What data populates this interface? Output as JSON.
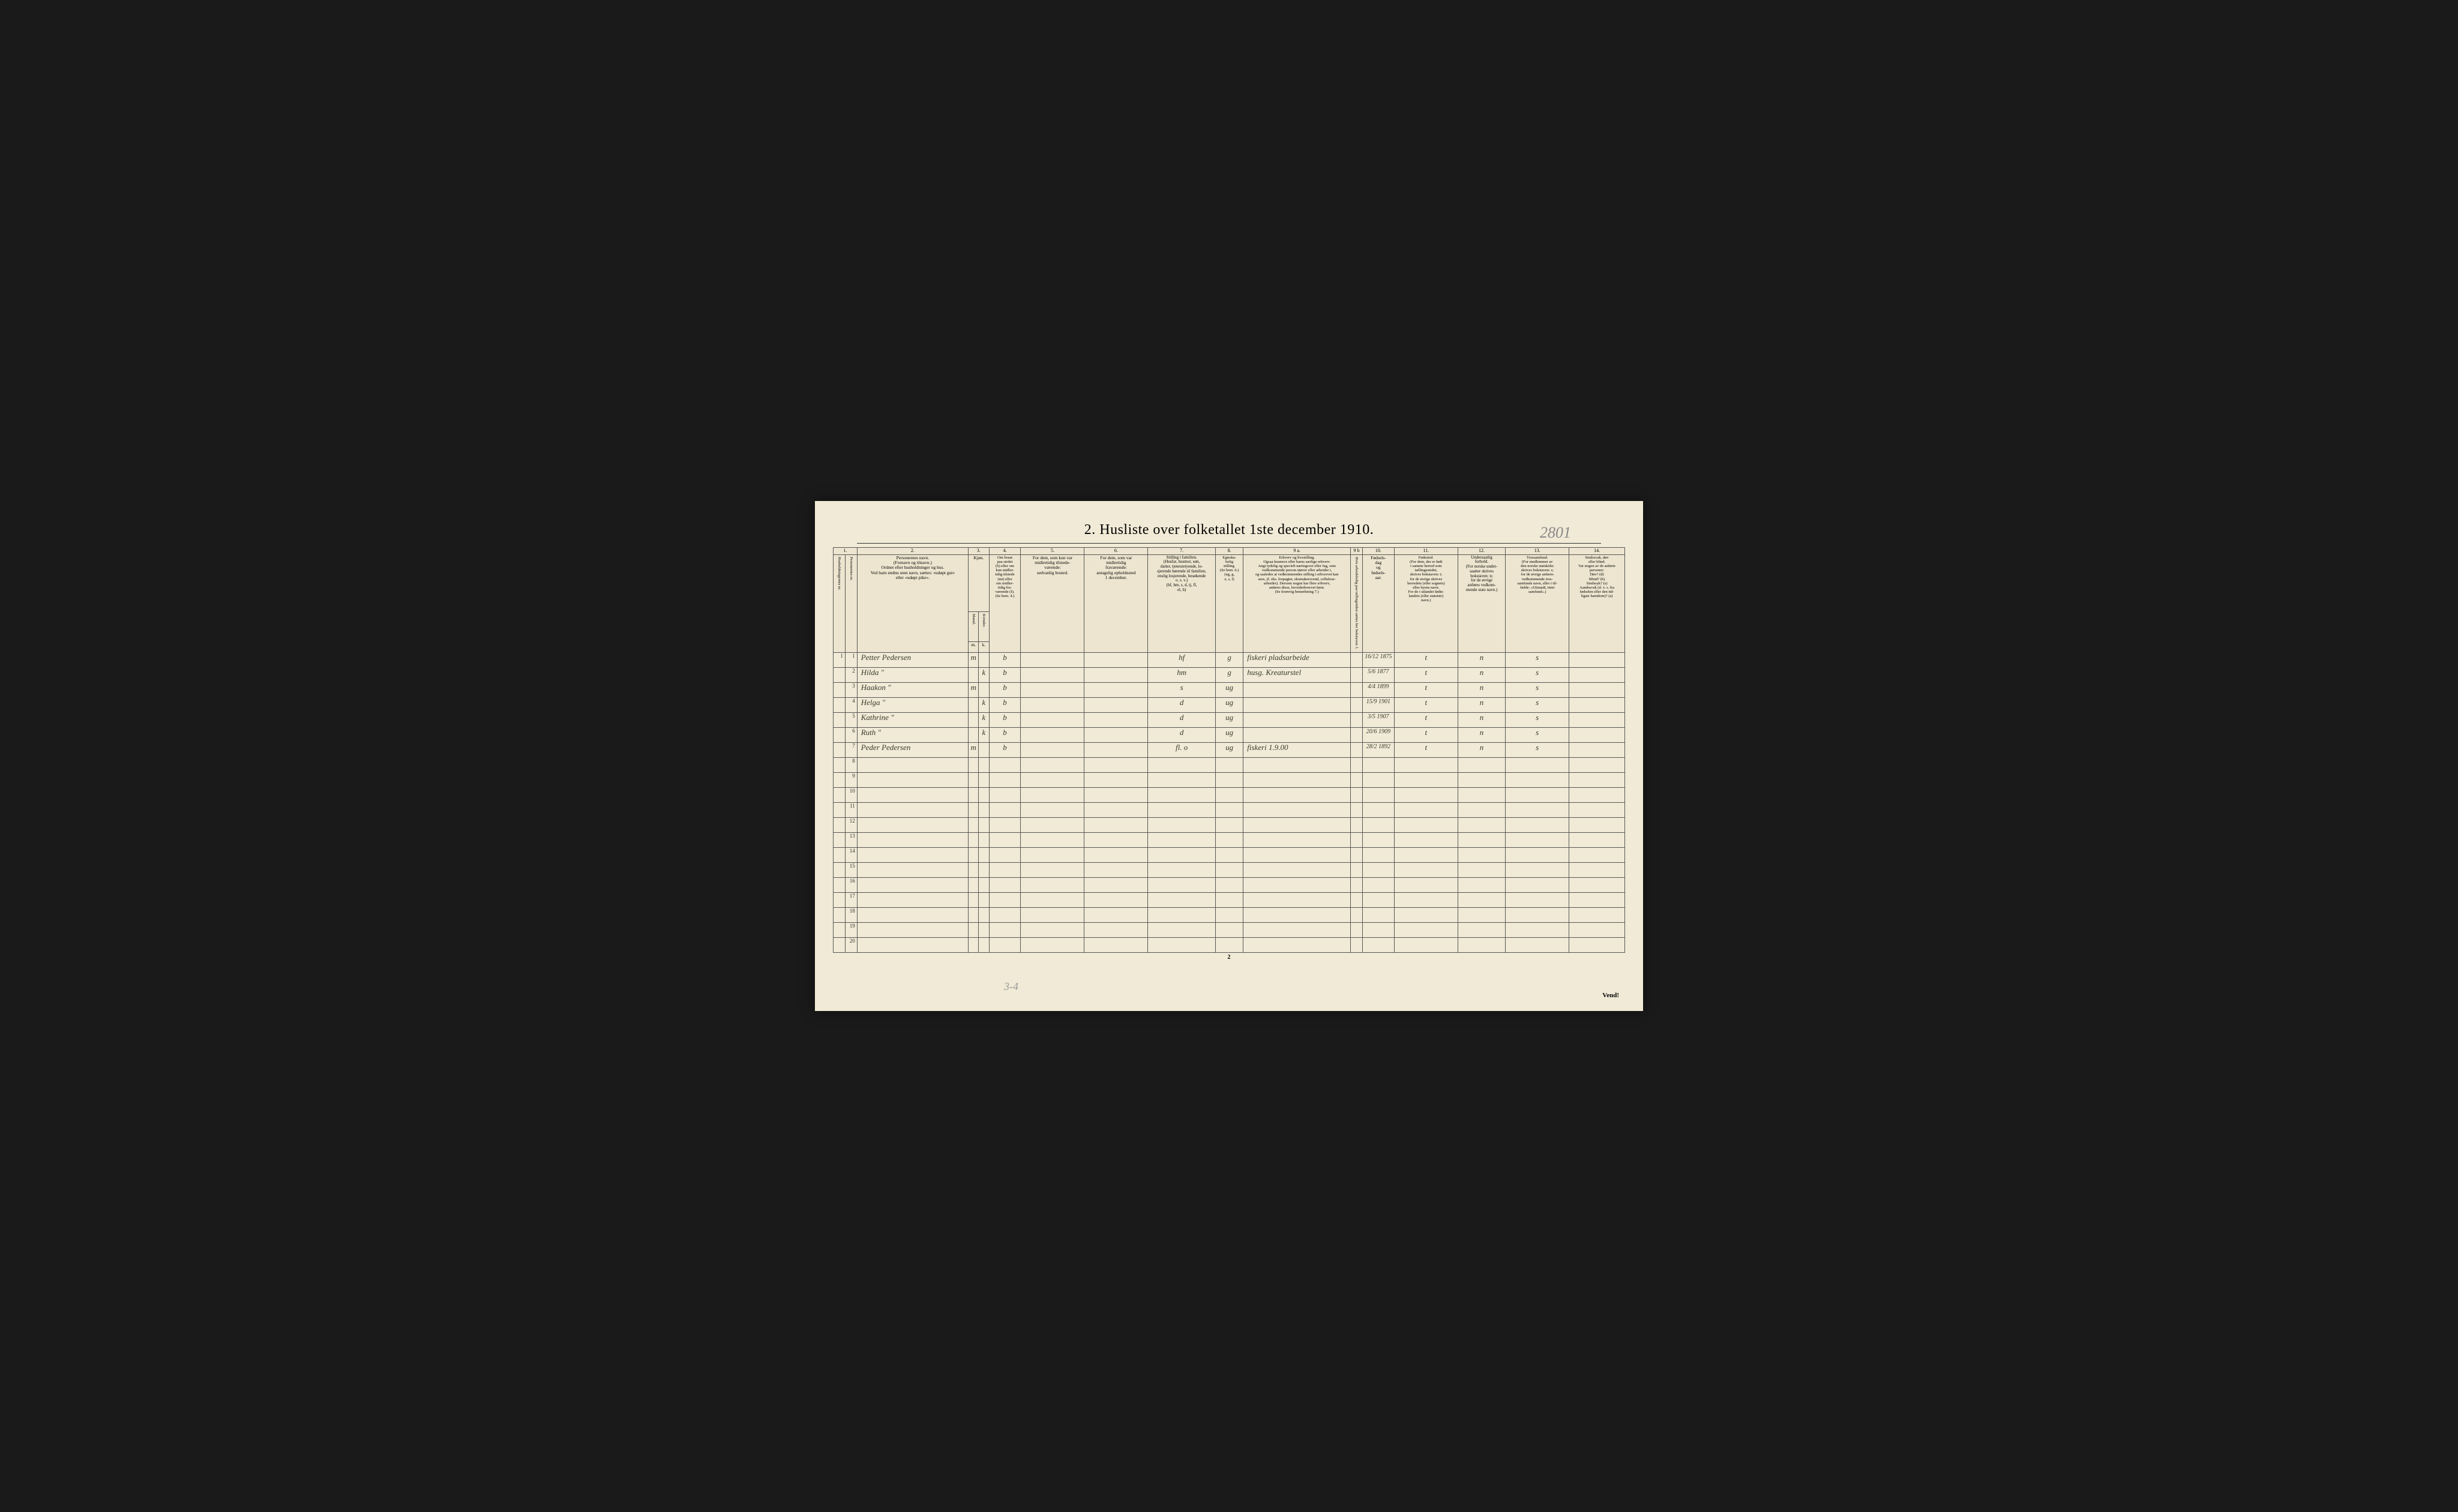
{
  "title": "2.  Husliste over folketallet 1ste december 1910.",
  "handwritten_number": "2801",
  "page_number_bottom": "2",
  "vend_label": "Vend!",
  "bottom_note": "3-4",
  "column_numbers": [
    "1.",
    "2.",
    "3.",
    "4.",
    "5.",
    "6.",
    "7.",
    "8.",
    "9 a.",
    "9 b",
    "10.",
    "11.",
    "12.",
    "13.",
    "14."
  ],
  "headers": {
    "h1": "Husholdningernes nr.",
    "h1b": "Personernes nr.",
    "h2": "Personernes navn.\n(Fornavn og tilnavn.)\nOrdnet efter husholdninger og hus.\nVed barn endnu uten navn, sættes: «udøpt gut»\neller «udøpt pike».",
    "h3": "Kjøn.",
    "h3a": "Mænd.",
    "h3b": "Kvinder.",
    "h3c": "m.",
    "h3d": "k.",
    "h4": "Om bosat\npaa stedet\n(b) eller om\nkun midler-\ntidig tilstede\n(mt) eller\nom midler-\ntidig fra-\nværende (f).\n(Se bem. 4.)",
    "h5": "For dem, som kun var\nmidlertidig tilstede-\nværende:\nsedvanlig bosted.",
    "h6": "For dem, som var\nmidlertidig\nfraværende:\nantagelig opholdssted\n1 december.",
    "h7": "Stilling i familien.\n(Husfar, husmor, søn,\ndatter, tjenestetyende, lo-\nsjerende hørende til familien,\nenslig losjerende, besøkende\no. s. v.)\n(hf, hm, s, d, tj, fl,\nel, b)",
    "h8": "Egteska-\nbelig\nstilling.\n(Se bem. 6.)\n(ug, g,\ne, s, f)",
    "h9a": "Erhverv og livsstilling.\nOgsaa husmors eller barns særlige erhverv.\nAngi tydelig og specielt næringsvei eller fag, som\nvedkommende person utøver eller arbeider i,\nog saaledes at vedkommendes stilling i erhvervet kan\nsees, (f. eks. forpagter, skomakersvend, cellulose-\narbeider). Dersom nogen har flere erhverv,\nanføres disse, hovederhvervet først.\n(Se forøvrig bemerkning 7.)",
    "h9b": "Hvis arbeidsledig\npaa tællingstiden sættes\nher bokstaven: l.",
    "h10": "Fødsels-\ndag\nog\nfødsels-\naar.",
    "h11": "Fødested.\n(For dem, der er født\ni samme herred som\ntællingsstedet,\nskrives bokstaven: t;\nfor de øvrige skrives\nherredets (eller sognets)\neller byens navn.\nFor de i utlandet fødte:\nlandets (eller statetstr)\nnavn.)",
    "h12": "Undersaatlig\nforhold.\n(For norske under-\nsaatter skrives\nbokstaven: n;\nfor de øvrige\nanføres vedkom-\nmende stats navn.)",
    "h13": "Trossamfund.\n(For medlemmer av\nden norske statskirke\nskrives bokstaven: s;\nfor de øvrige anføres\nvedkommende tros-\nsamfunds navn, eller i til-\nfælde: «Uttraadt, intet\nsamfund».)",
    "h14": "Sindssvak, døv\neller blind.\nVar nogen av de anførte\npersoner:\nDøv?        (d)\nBlind?      (b)\nSindssyk? (s)\nAandssvak (d. v. s. fra\nfødselen eller den tid-\nligste barndom)? (a)"
  },
  "rows": [
    {
      "n": "1",
      "name": "Petter Pedersen",
      "m": "m",
      "k": "",
      "b": "b",
      "c5": "",
      "c6": "",
      "c7": "hf",
      "c8": "g",
      "c9a": "fiskeri pladsarbeide",
      "c9b": "",
      "c10": "16/12 1875",
      "c11": "t",
      "c12": "n",
      "c13": "s",
      "c14": ""
    },
    {
      "n": "2",
      "name": "Hilda       \"",
      "m": "",
      "k": "k",
      "b": "b",
      "c5": "",
      "c6": "",
      "c7": "hm",
      "c8": "g",
      "c9a": "husg. Kreaturstel",
      "c9b": "",
      "c10": "5/6 1877",
      "c11": "t",
      "c12": "n",
      "c13": "s",
      "c14": ""
    },
    {
      "n": "3",
      "name": "Haakon    \"",
      "m": "m",
      "k": "",
      "b": "b",
      "c5": "",
      "c6": "",
      "c7": "s",
      "c8": "ug",
      "c9a": "",
      "c9b": "",
      "c10": "4/4 1899",
      "c11": "t",
      "c12": "n",
      "c13": "s",
      "c14": ""
    },
    {
      "n": "4",
      "name": "Helga      \"",
      "m": "",
      "k": "k",
      "b": "b",
      "c5": "",
      "c6": "",
      "c7": "d",
      "c8": "ug",
      "c9a": "",
      "c9b": "",
      "c10": "15/9 1901",
      "c11": "t",
      "c12": "n",
      "c13": "s",
      "c14": ""
    },
    {
      "n": "5",
      "name": "Kathrine  \"",
      "m": "",
      "k": "k",
      "b": "b",
      "c5": "",
      "c6": "",
      "c7": "d",
      "c8": "ug",
      "c9a": "",
      "c9b": "",
      "c10": "3/5 1907",
      "c11": "t",
      "c12": "n",
      "c13": "s",
      "c14": ""
    },
    {
      "n": "6",
      "name": "Ruth        \"",
      "m": "",
      "k": "k",
      "b": "b",
      "c5": "",
      "c6": "",
      "c7": "d",
      "c8": "ug",
      "c9a": "",
      "c9b": "",
      "c10": "20/6 1909",
      "c11": "t",
      "c12": "n",
      "c13": "s",
      "c14": ""
    },
    {
      "n": "7",
      "name": "Peder Pedersen",
      "m": "m",
      "k": "",
      "b": "b",
      "c5": "",
      "c6": "",
      "c7": "fl. o",
      "c8": "ug",
      "c9a": "fiskeri  1.9.00",
      "c9b": "",
      "c10": "28/2 1892",
      "c11": "t",
      "c12": "n",
      "c13": "s",
      "c14": ""
    }
  ],
  "empty_rows": [
    8,
    9,
    10,
    11,
    12,
    13,
    14,
    15,
    16,
    17,
    18,
    19,
    20
  ],
  "col_widths": {
    "c1a": "1.5%",
    "c1b": "1.5%",
    "c2": "14%",
    "c3a": "1.3%",
    "c3b": "1.3%",
    "c4": "4%",
    "c5": "8%",
    "c6": "8%",
    "c7": "8.5%",
    "c8": "3.5%",
    "c9a": "13.5%",
    "c9b": "1.5%",
    "c10": "4%",
    "c11": "8%",
    "c12": "6%",
    "c13": "8%",
    "c14": "7%"
  },
  "colors": {
    "page_bg": "#f0ead6",
    "border": "#555555",
    "text": "#333333",
    "handwriting": "#3a3a2a",
    "faint": "#888888"
  }
}
